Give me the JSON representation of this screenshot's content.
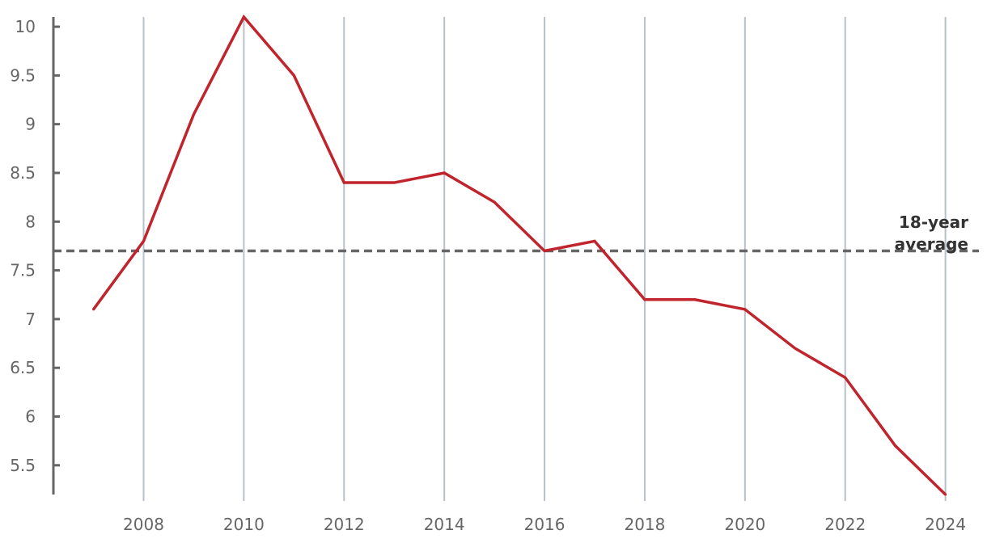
{
  "chart_data": {
    "type": "line",
    "title": "",
    "xlabel": "",
    "ylabel": "",
    "x": [
      2007,
      2008,
      2009,
      2010,
      2011,
      2012,
      2013,
      2014,
      2015,
      2016,
      2017,
      2018,
      2019,
      2020,
      2021,
      2022,
      2023,
      2024
    ],
    "series": [
      {
        "values": [
          7.1,
          7.8,
          9.1,
          10.1,
          9.5,
          8.4,
          8.4,
          8.5,
          8.2,
          7.7,
          7.8,
          7.2,
          7.2,
          7.1,
          6.7,
          6.4,
          5.7,
          5.2
        ],
        "color": "#c0242c"
      }
    ],
    "xlim": [
      2006.2,
      2024.2
    ],
    "ylim": [
      5.2,
      10.1
    ],
    "x_ticks": [
      "2008",
      "2010",
      "2012",
      "2014",
      "2016",
      "2018",
      "2020",
      "2022",
      "2024"
    ],
    "y_ticks": [
      "5.5",
      "6",
      "6.5",
      "7",
      "7.5",
      "8",
      "8.5",
      "9",
      "9.5",
      "10"
    ],
    "reference_line": {
      "value": 7.7,
      "label_line1": "18-year",
      "label_line2": "average",
      "color": "#666666",
      "style": "dashed"
    },
    "grid": {
      "vertical": true,
      "horizontal": false,
      "color": "#b8c0c8"
    },
    "axis_color": "#666666",
    "legend": "none"
  }
}
